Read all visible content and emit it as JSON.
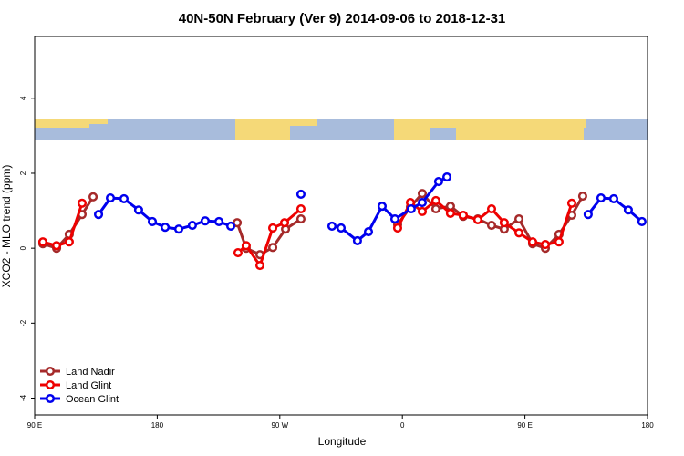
{
  "chart_data": {
    "type": "line",
    "title": "40N-50N February (Ver 9)   2014-09-06 to 2018-12-31",
    "x_label": "Longitude",
    "y_label": "XCO2 - MLO trend (ppm)",
    "xlim": [
      90,
      540
    ],
    "xticks": [
      {
        "value": 90,
        "label": "90 E"
      },
      180,
      {
        "value": 270,
        "label": "90 W"
      },
      {
        "value": 360,
        "label": "0"
      },
      {
        "value": 450,
        "label": "90 E"
      },
      {
        "value": 540,
        "label": "180"
      }
    ],
    "ylim": [
      -4.45,
      5.65
    ],
    "yticks": [
      -4,
      -2,
      0,
      2,
      4
    ],
    "legend": "bottom-left",
    "series": [
      {
        "name": "Land Nadir",
        "color": "#a52a2a",
        "x": [
          96.0,
          106.1,
          115.4,
          124.8,
          132.9,
          null,
          238.7,
          245.3,
          255.4,
          264.8,
          274.2,
          285.5,
          null,
          356.5,
          365.9,
          374.6,
          384.6,
          395.3,
          404.7,
          415.4,
          425.5,
          434.8,
          445.6,
          455.6,
          465.0,
          475.0,
          484.4,
          492.4
        ],
        "values": [
          0.12,
          0.0,
          0.37,
          0.9,
          1.37,
          null,
          0.68,
          0.0,
          -0.17,
          0.02,
          0.51,
          0.78,
          null,
          0.63,
          1.1,
          1.46,
          1.05,
          1.12,
          0.85,
          0.78,
          0.61,
          0.51,
          0.78,
          0.12,
          0.0,
          0.37,
          0.88,
          1.39
        ]
      },
      {
        "name": "Land Glint",
        "color": "#ee0000",
        "x": [
          96.0,
          106.1,
          115.4,
          124.8,
          null,
          239.3,
          245.3,
          255.4,
          264.8,
          273.5,
          285.5,
          null,
          356.5,
          365.9,
          374.6,
          384.6,
          395.3,
          404.7,
          415.4,
          425.5,
          434.8,
          445.6,
          455.6,
          465.0,
          475.0,
          484.4
        ],
        "values": [
          0.17,
          0.07,
          0.17,
          1.2,
          null,
          -0.12,
          0.07,
          -0.46,
          0.54,
          0.68,
          1.05,
          null,
          0.54,
          1.22,
          0.98,
          1.27,
          0.93,
          0.88,
          0.76,
          1.05,
          0.68,
          0.41,
          0.17,
          0.1,
          0.17,
          1.2
        ]
      },
      {
        "name": "Ocean Glint",
        "color": "#0000ee",
        "x": [
          136.9,
          145.6,
          155.6,
          166.3,
          176.4,
          185.8,
          195.8,
          205.8,
          215.2,
          225.3,
          234.0,
          null,
          285.5,
          null,
          308.3,
          315.0,
          327.0,
          335.1,
          345.1,
          354.5,
          366.5,
          374.6,
          386.6,
          392.7,
          null,
          496.4,
          505.8,
          515.2,
          525.9,
          535.9
        ],
        "values": [
          0.9,
          1.34,
          1.32,
          1.02,
          0.71,
          0.56,
          0.51,
          0.61,
          0.73,
          0.71,
          0.59,
          null,
          1.44,
          null,
          0.59,
          0.54,
          0.2,
          0.44,
          1.12,
          0.78,
          1.05,
          1.22,
          1.78,
          1.9,
          null,
          0.9,
          1.34,
          1.32,
          1.02,
          0.71
        ]
      }
    ]
  }
}
